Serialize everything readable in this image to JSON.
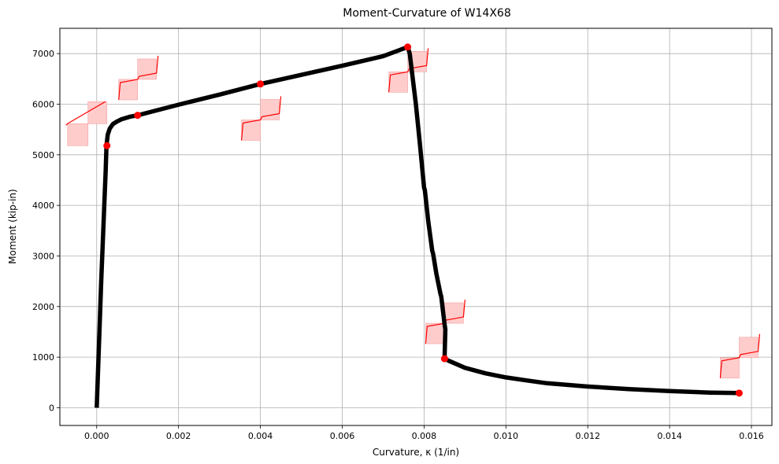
{
  "chart_data": {
    "type": "line",
    "title": "Moment-Curvature of W14X68",
    "xlabel": "Curvature, κ (1/in)",
    "ylabel": "Moment (kip-in)",
    "xlim": [
      -0.0009,
      0.0165
    ],
    "ylim": [
      -350,
      7500
    ],
    "grid": true,
    "x_ticks": [
      0.0,
      0.002,
      0.004,
      0.006,
      0.008,
      0.01,
      0.012,
      0.014,
      0.016
    ],
    "x_tick_labels": [
      "0.000",
      "0.002",
      "0.004",
      "0.006",
      "0.008",
      "0.010",
      "0.012",
      "0.014",
      "0.016"
    ],
    "y_ticks": [
      0,
      1000,
      2000,
      3000,
      4000,
      5000,
      6000,
      7000
    ],
    "y_tick_labels": [
      "0",
      "1000",
      "2000",
      "3000",
      "4000",
      "5000",
      "6000",
      "7000"
    ],
    "series": [
      {
        "color": "#000000",
        "x": [
          0.0,
          0.00011,
          0.00022,
          0.00024,
          0.00027,
          0.00032,
          0.0004,
          0.0005,
          0.0006,
          0.0008,
          0.001,
          0.002,
          0.003,
          0.004,
          0.005,
          0.006,
          0.007,
          0.0076,
          0.00765,
          0.0078,
          0.0079,
          0.008,
          0.00802,
          0.0081,
          0.0082,
          0.00822,
          0.0083,
          0.0084,
          0.00842,
          0.0085,
          0.00852,
          0.0085,
          0.0086,
          0.0088,
          0.009,
          0.0095,
          0.01,
          0.0105,
          0.011,
          0.012,
          0.013,
          0.014,
          0.015,
          0.0157
        ],
        "y": [
          0,
          2500,
          4700,
          5180,
          5400,
          5520,
          5610,
          5660,
          5700,
          5750,
          5780,
          5990,
          6190,
          6400,
          6580,
          6760,
          6950,
          7130,
          7000,
          6000,
          5200,
          4350,
          4300,
          3700,
          3100,
          3050,
          2650,
          2250,
          2200,
          1650,
          1550,
          970,
          930,
          860,
          790,
          680,
          600,
          540,
          485,
          420,
          370,
          330,
          300,
          290
        ]
      }
    ],
    "points": {
      "color": "#ff0000",
      "x": [
        0.00025,
        0.001,
        0.004,
        0.0076,
        0.0085,
        0.0157
      ],
      "y": [
        5180,
        5780,
        6400,
        7130,
        970,
        290
      ]
    },
    "stress_diagrams": {
      "color": "#ff0000",
      "fill": "#ffcccc",
      "centers": [
        {
          "x": 0.00025,
          "y": 5180
        },
        {
          "x": 0.001,
          "y": 6490
        },
        {
          "x": 0.004,
          "y": 5690
        },
        {
          "x": 0.0076,
          "y": 6640
        },
        {
          "x": 0.0085,
          "y": 1670
        },
        {
          "x": 0.0157,
          "y": 990
        }
      ],
      "shapes": [
        "linear",
        "bilinear",
        "bilinear",
        "bilinear",
        "bilinear",
        "bilinear"
      ]
    }
  }
}
